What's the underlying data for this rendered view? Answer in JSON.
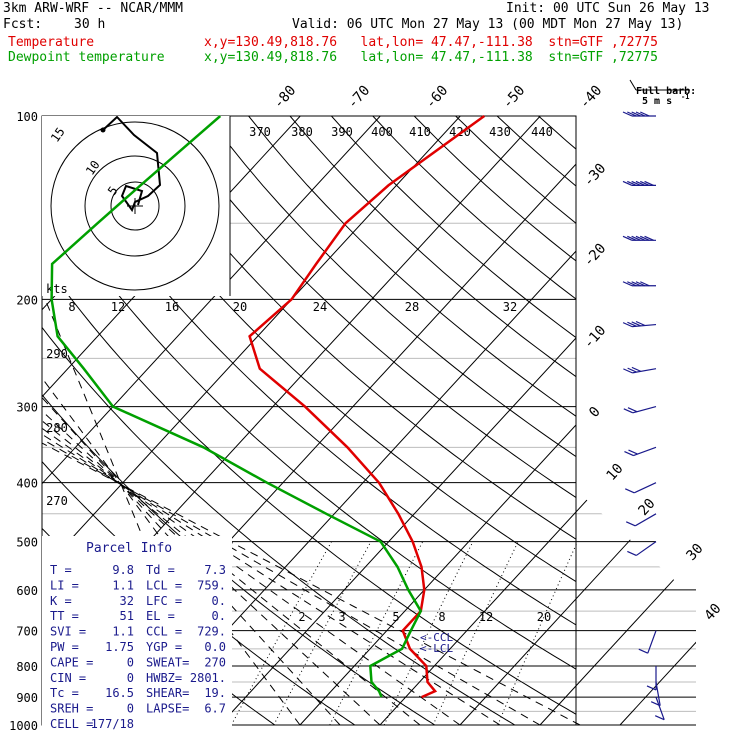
{
  "header": {
    "model": "3km ARW-WRF -- NCAR/MMM",
    "init": "Init: 00 UTC Sun 26 May 13",
    "fcst_label": "Fcst:",
    "fcst_value": "30 h",
    "valid": "Valid: 06 UTC Mon 27 May 13 (00 MDT Mon 27 May 13)"
  },
  "legend": [
    {
      "name": "Temperature",
      "location": "x,y=130.49,818.76   lat,lon= 47.47,-111.38  stn=GTF ,72775",
      "color": "#e00000"
    },
    {
      "name": "Dewpoint temperature",
      "location": "x,y=130.49,818.76   lat,lon= 47.47,-111.38  stn=GTF ,72775",
      "color": "#00a000"
    }
  ],
  "barb_header": {
    "title": "Full barb:",
    "value": "5 m s",
    "exp": "-1"
  },
  "hodograph": {
    "units": "kts",
    "speed_labels": [
      "5",
      "10",
      "15"
    ],
    "dir_labels": [
      "8",
      "12",
      "16",
      "20",
      "24",
      "28",
      "32"
    ]
  },
  "parcel": {
    "title": "Parcel Info",
    "rows": [
      [
        "T  =",
        "9.8",
        "Td =",
        "7.3"
      ],
      [
        "LI =",
        "1.1",
        "LCL =",
        "759."
      ],
      [
        "K  =",
        "32",
        "LFC =",
        "0."
      ],
      [
        "TT =",
        "51",
        "EL  =",
        "0."
      ],
      [
        "SVI =",
        "1.1",
        "CCL =",
        "729."
      ],
      [
        "PW =",
        "1.75",
        "YGP =",
        "0.0"
      ],
      [
        "CAPE =",
        "0",
        "SWEAT=",
        "270"
      ],
      [
        "CIN  =",
        "0",
        "HWBZ=",
        "2801."
      ],
      [
        "Tc =",
        "16.5",
        "SHEAR=",
        "19."
      ],
      [
        "SREH =",
        "0",
        "LAPSE=",
        "6.7"
      ],
      [
        "CELL =",
        "177/18",
        "",
        ""
      ]
    ]
  },
  "chart_data": {
    "type": "line",
    "title": "",
    "pressure_levels": [
      100,
      200,
      300,
      400,
      500,
      600,
      700,
      800,
      900,
      1000
    ],
    "pressure_labels": [
      "100",
      "200",
      "300",
      "400",
      "500",
      "600",
      "700",
      "800",
      "900",
      "1000"
    ],
    "temperature_labels": [
      "-80",
      "-70",
      "-60",
      "-50",
      "-40",
      "-30",
      "-20",
      "-10",
      "0",
      "10",
      "20",
      "30",
      "40"
    ],
    "theta_labels": [
      "370",
      "380",
      "390",
      "400",
      "410",
      "420",
      "430",
      "440"
    ],
    "theta_low_labels": [
      "290",
      "280",
      "270"
    ],
    "mixing_ratio_labels": [
      "2",
      "3",
      "5",
      "8",
      "12",
      "20"
    ],
    "annotations": [
      "<-CCL",
      "<-LCL"
    ],
    "series": [
      {
        "name": "Temperature",
        "color": "#e00000",
        "points": [
          [
            100,
            -47
          ],
          [
            130,
            -51
          ],
          [
            150,
            -52
          ],
          [
            175,
            -51
          ],
          [
            200,
            -50
          ],
          [
            230,
            -51
          ],
          [
            260,
            -46
          ],
          [
            300,
            -36
          ],
          [
            350,
            -26
          ],
          [
            400,
            -18
          ],
          [
            450,
            -12
          ],
          [
            500,
            -7
          ],
          [
            550,
            -3
          ],
          [
            600,
            0
          ],
          [
            650,
            2
          ],
          [
            700,
            2
          ],
          [
            750,
            5
          ],
          [
            800,
            9
          ],
          [
            850,
            11
          ],
          [
            880,
            13
          ],
          [
            900,
            12
          ]
        ]
      },
      {
        "name": "Dewpoint temperature",
        "color": "#00a000",
        "points": [
          [
            100,
            -80
          ],
          [
            130,
            -82
          ],
          [
            150,
            -83
          ],
          [
            175,
            -84
          ],
          [
            200,
            -80
          ],
          [
            230,
            -75
          ],
          [
            260,
            -68
          ],
          [
            300,
            -60
          ],
          [
            350,
            -44
          ],
          [
            400,
            -32
          ],
          [
            450,
            -21
          ],
          [
            500,
            -11
          ],
          [
            550,
            -6
          ],
          [
            600,
            -2
          ],
          [
            650,
            2
          ],
          [
            700,
            3
          ],
          [
            750,
            4
          ],
          [
            800,
            2
          ],
          [
            850,
            4
          ],
          [
            880,
            6
          ],
          [
            900,
            7
          ]
        ]
      }
    ],
    "wind_barbs": [
      {
        "p": 100,
        "speed_ms": 25,
        "dir": 270
      },
      {
        "p": 130,
        "speed_ms": 30,
        "dir": 270
      },
      {
        "p": 160,
        "speed_ms": 30,
        "dir": 270
      },
      {
        "p": 190,
        "speed_ms": 25,
        "dir": 270
      },
      {
        "p": 220,
        "speed_ms": 20,
        "dir": 265
      },
      {
        "p": 260,
        "speed_ms": 15,
        "dir": 260
      },
      {
        "p": 300,
        "speed_ms": 12,
        "dir": 255
      },
      {
        "p": 350,
        "speed_ms": 10,
        "dir": 250
      },
      {
        "p": 400,
        "speed_ms": 8,
        "dir": 245
      },
      {
        "p": 450,
        "speed_ms": 8,
        "dir": 240
      },
      {
        "p": 500,
        "speed_ms": 6,
        "dir": 235
      },
      {
        "p": 700,
        "speed_ms": 5,
        "dir": 200
      },
      {
        "p": 800,
        "speed_ms": 5,
        "dir": 180
      },
      {
        "p": 850,
        "speed_ms": 5,
        "dir": 170
      },
      {
        "p": 900,
        "speed_ms": 5,
        "dir": 160
      }
    ]
  }
}
